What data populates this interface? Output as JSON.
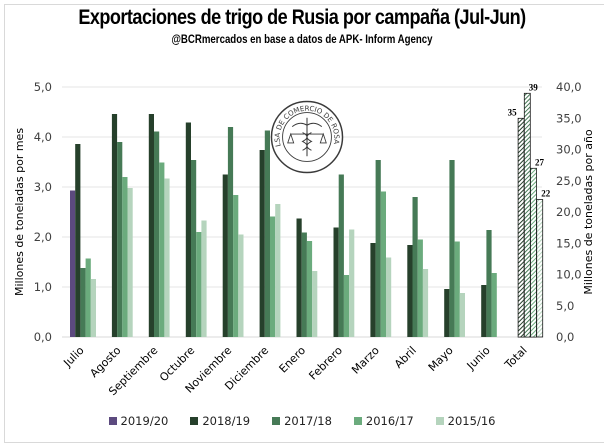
{
  "header": {
    "title": "Exportaciones de trigo de Rusia por campaña (Jul-Jun)",
    "subtitle": "@BCRmercados en base a datos de APK- Inform Agency"
  },
  "seal": {
    "text": "BOLSA DE COMERCIO DE ROSARIO",
    "icon": "caduceus-scales-seal-icon"
  },
  "chart_data": {
    "type": "bar",
    "title": "Exportaciones de trigo de Rusia por campaña (Jul-Jun)",
    "subtitle": "@BCRmercados en base a datos de APK- Inform Agency",
    "categories": [
      "Julio",
      "Agosto",
      "Septiembre",
      "Octubre",
      "Noviembre",
      "Diciembre",
      "Enero",
      "Febrero",
      "Marzo",
      "Abril",
      "Mayo",
      "Junio",
      "Total"
    ],
    "ylabel": "Millones de toneladas por mes",
    "y2label": "Millones de toneladas por año",
    "ylim": [
      0,
      5
    ],
    "y2lim": [
      0,
      40
    ],
    "yticks": [
      "0,0",
      "1,0",
      "2,0",
      "3,0",
      "4,0",
      "5,0"
    ],
    "y2ticks": [
      "0,0",
      "5,0",
      "10,0",
      "15,0",
      "20,0",
      "25,0",
      "30,0",
      "35,0",
      "40,0"
    ],
    "grid": true,
    "legend_position": "bottom",
    "series": [
      {
        "name": "2019/20",
        "color": "#5c4a7f",
        "values": [
          2.93,
          null,
          null,
          null,
          null,
          null,
          null,
          null,
          null,
          null,
          null,
          null
        ]
      },
      {
        "name": "2018/19",
        "color": "#26402b",
        "values": [
          3.86,
          4.46,
          4.46,
          4.29,
          3.25,
          3.74,
          2.37,
          2.19,
          1.88,
          1.84,
          0.96,
          1.04
        ]
      },
      {
        "name": "2017/18",
        "color": "#467a56",
        "values": [
          1.38,
          3.9,
          4.11,
          3.54,
          4.2,
          4.13,
          2.09,
          3.25,
          3.54,
          2.8,
          3.54,
          2.14
        ]
      },
      {
        "name": "2016/17",
        "color": "#6bab7d",
        "values": [
          1.57,
          3.2,
          3.49,
          2.1,
          2.84,
          2.41,
          1.92,
          1.24,
          2.91,
          1.95,
          1.91,
          1.28
        ]
      },
      {
        "name": "2015/16",
        "color": "#b5d4bd",
        "values": [
          1.16,
          2.98,
          3.17,
          2.33,
          2.05,
          2.66,
          1.32,
          2.15,
          1.59,
          1.36,
          0.88,
          null
        ]
      }
    ],
    "totals": {
      "axis": "secondary",
      "pattern": "hatched",
      "series": [
        {
          "name": "2018/19",
          "value": 35,
          "label": "35"
        },
        {
          "name": "2017/18",
          "value": 39,
          "label": "39"
        },
        {
          "name": "2016/17",
          "value": 27,
          "label": "27"
        },
        {
          "name": "2015/16",
          "value": 22,
          "label": "22"
        }
      ]
    }
  }
}
